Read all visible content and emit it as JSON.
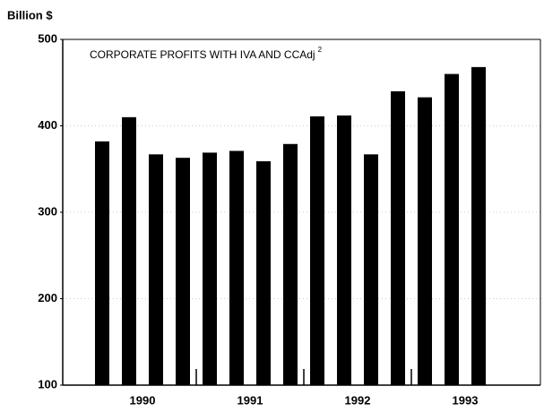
{
  "chart_data": {
    "type": "bar",
    "title": "CORPORATE PROFITS WITH IVA AND CCAdj",
    "title_superscript": "2",
    "ylabel": "Billion $",
    "categories": [
      null,
      null,
      null,
      null,
      null,
      null,
      null,
      null,
      null,
      null,
      null,
      null,
      null,
      null,
      null,
      null
    ],
    "groups": [
      "1990",
      "1991",
      "1992",
      "1993"
    ],
    "values": [
      382,
      410,
      367,
      363,
      369,
      371,
      359,
      379,
      411,
      412,
      367,
      440,
      433,
      460,
      468,
      null
    ],
    "color": "#000000",
    "ylim": [
      100,
      500
    ],
    "yticks": [
      100,
      200,
      300,
      400,
      500
    ],
    "grid": true
  }
}
